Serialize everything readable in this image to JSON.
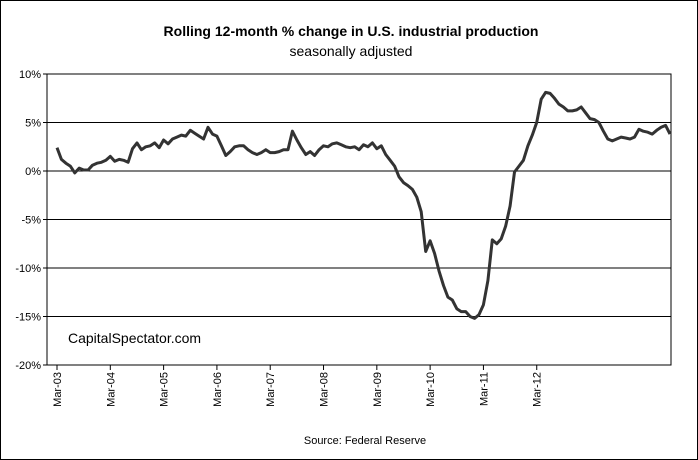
{
  "chart_data": {
    "type": "line",
    "title": "Rolling 12-month %  change in U.S. industrial production",
    "subtitle": "seasonally adjusted",
    "watermark": "CapitalSpectator.com",
    "source": "Source: Federal Reserve",
    "xlabel": "",
    "ylabel": "",
    "ylim": [
      -20,
      10
    ],
    "y_ticks": [
      10,
      5,
      0,
      -5,
      -10,
      -15,
      -20
    ],
    "y_tick_labels": [
      "10%",
      "5%",
      "0%",
      "-5%",
      "-10%",
      "-15%",
      "-20%"
    ],
    "x_tick_labels": [
      "Mar-03",
      "Mar-04",
      "Mar-05",
      "Mar-06",
      "Mar-07",
      "Mar-08",
      "Mar-09",
      "Mar-10",
      "Mar-11",
      "Mar-12"
    ],
    "grid": "horizontal",
    "line_color": "#333333",
    "series": [
      {
        "values": [
          2.4,
          1.2,
          0.8,
          0.5,
          -0.2,
          0.3,
          0.1,
          0.1,
          0.6,
          0.8,
          0.9,
          1.1,
          1.5,
          1.0,
          1.2,
          1.1,
          0.9,
          2.3,
          2.9,
          2.2,
          2.5,
          2.6,
          2.9,
          2.4,
          3.2,
          2.8,
          3.3,
          3.5,
          3.7,
          3.6,
          4.2,
          3.9,
          3.6,
          3.3,
          4.5,
          3.8,
          3.6,
          2.6,
          1.6,
          2.0,
          2.5,
          2.6,
          2.6,
          2.2,
          1.9,
          1.7,
          1.9,
          2.2,
          1.9,
          1.9,
          2.0,
          2.2,
          2.2,
          4.1,
          3.2,
          2.4,
          1.7,
          2.0,
          1.6,
          2.2,
          2.6,
          2.5,
          2.8,
          2.9,
          2.7,
          2.5,
          2.4,
          2.5,
          2.2,
          2.7,
          2.5,
          2.9,
          2.3,
          2.6,
          1.7,
          1.1,
          0.5,
          -0.6,
          -1.2,
          -1.5,
          -1.9,
          -2.7,
          -4.2,
          -8.3,
          -7.2,
          -8.5,
          -10.3,
          -11.8,
          -13.0,
          -13.3,
          -14.2,
          -14.5,
          -14.5,
          -15.0,
          -15.2,
          -14.8,
          -13.8,
          -11.3,
          -7.1,
          -7.5,
          -7.0,
          -5.7,
          -3.6,
          -0.1,
          0.5,
          1.1,
          2.6,
          3.7,
          5.0,
          7.4,
          8.1,
          8.0,
          7.5,
          6.9,
          6.6,
          6.2,
          6.2,
          6.3,
          6.6,
          6.0,
          5.4,
          5.3,
          5.0,
          4.1,
          3.3,
          3.1,
          3.3,
          3.5,
          3.4,
          3.3,
          3.5,
          4.3,
          4.1,
          4.0,
          3.8,
          4.2,
          4.5,
          4.7,
          3.8
        ]
      }
    ]
  }
}
